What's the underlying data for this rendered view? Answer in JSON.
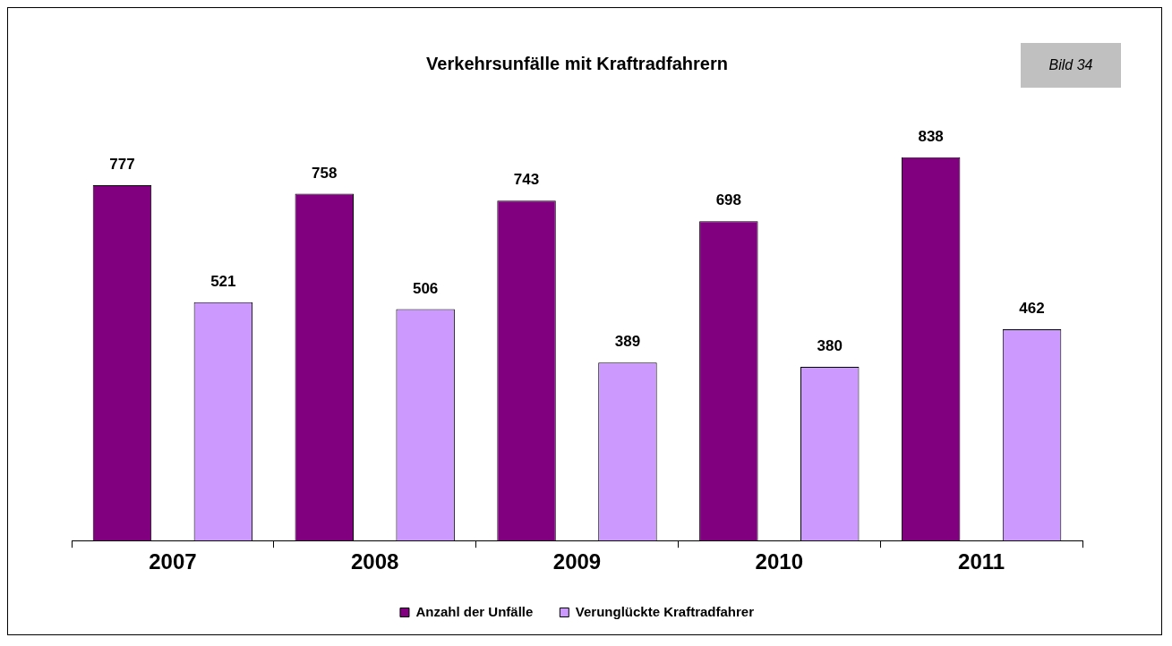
{
  "chart_data": {
    "type": "bar",
    "title": "Verkehrsunfälle mit Kraftradfahrern",
    "annotations": [
      "Bild 34"
    ],
    "categories": [
      "2007",
      "2008",
      "2009",
      "2010",
      "2011"
    ],
    "series": [
      {
        "name": "Anzahl der Unfälle",
        "color": "#800080",
        "values": [
          777,
          758,
          743,
          698,
          838
        ]
      },
      {
        "name": "Verunglückte Kraftradfahrer",
        "color": "#cc99ff",
        "values": [
          521,
          506,
          389,
          380,
          462
        ]
      }
    ],
    "data_labels": true,
    "grid": false,
    "legend": "bottom"
  }
}
